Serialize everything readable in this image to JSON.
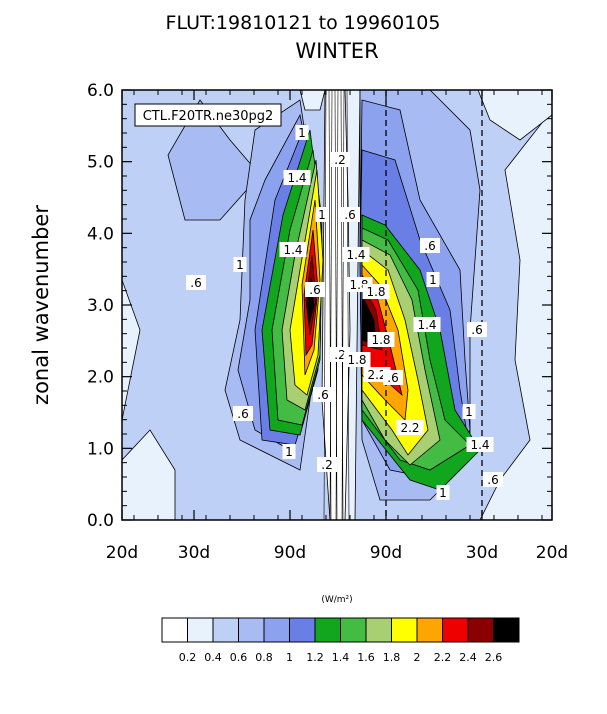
{
  "chart_data": {
    "type": "heatmap",
    "title": "FLUT:19810121 to 19960105",
    "subtitle": "WINTER",
    "xlabel": "",
    "ylabel": "zonal wavenumber",
    "case_label": "CTL.F20TR.ne30pg2",
    "units_label": "(W/m²)",
    "x_tick_labels": [
      "20d",
      "30d",
      "90d",
      "90d",
      "30d",
      "20d"
    ],
    "y_ticks": [
      0.0,
      1.0,
      2.0,
      3.0,
      4.0,
      5.0,
      6.0
    ],
    "y_tick_labels": [
      "0.0",
      "1.0",
      "2.0",
      "3.0",
      "4.0",
      "5.0",
      "6.0"
    ],
    "ylim": [
      0,
      6
    ],
    "dashed_lines_at_ticks": [
      "90d",
      "30d"
    ],
    "contour_labels": [
      {
        "text": "1"
      },
      {
        "text": "1.4"
      },
      {
        "text": "1"
      },
      {
        "text": "1.4"
      },
      {
        "text": ".6"
      },
      {
        "text": "1"
      },
      {
        "text": "1.8"
      },
      {
        "text": ".6"
      },
      {
        "text": ".2"
      },
      {
        "text": ".6"
      },
      {
        "text": ".2"
      },
      {
        "text": ".6"
      },
      {
        "text": "1.4"
      },
      {
        "text": "1.8"
      },
      {
        "text": "1.8"
      },
      {
        "text": "2.2"
      },
      {
        "text": "1.8"
      },
      {
        "text": "2.2"
      },
      {
        "text": ".6"
      },
      {
        "text": "1"
      },
      {
        "text": "1.4"
      },
      {
        "text": ".6"
      },
      {
        "text": "1"
      },
      {
        "text": "1.4"
      },
      {
        "text": ".6"
      },
      {
        "text": "1"
      },
      {
        "text": ".2"
      },
      {
        "text": ".6"
      },
      {
        "text": "1"
      },
      {
        "text": ".6"
      }
    ],
    "colorbar": {
      "levels": [
        "0.2",
        "0.4",
        "0.6",
        "0.8",
        "1",
        "1.2",
        "1.4",
        "1.6",
        "1.8",
        "2",
        "2.2",
        "2.4",
        "2.6"
      ],
      "colors": [
        "#ffffff",
        "#e8f2fd",
        "#bfd0f6",
        "#a8bbf3",
        "#8ca2ee",
        "#6a7fe6",
        "#12a51e",
        "#44bc44",
        "#a8cf72",
        "#ffff00",
        "#ffa500",
        "#ee0000",
        "#8a0000",
        "#000000"
      ]
    }
  }
}
